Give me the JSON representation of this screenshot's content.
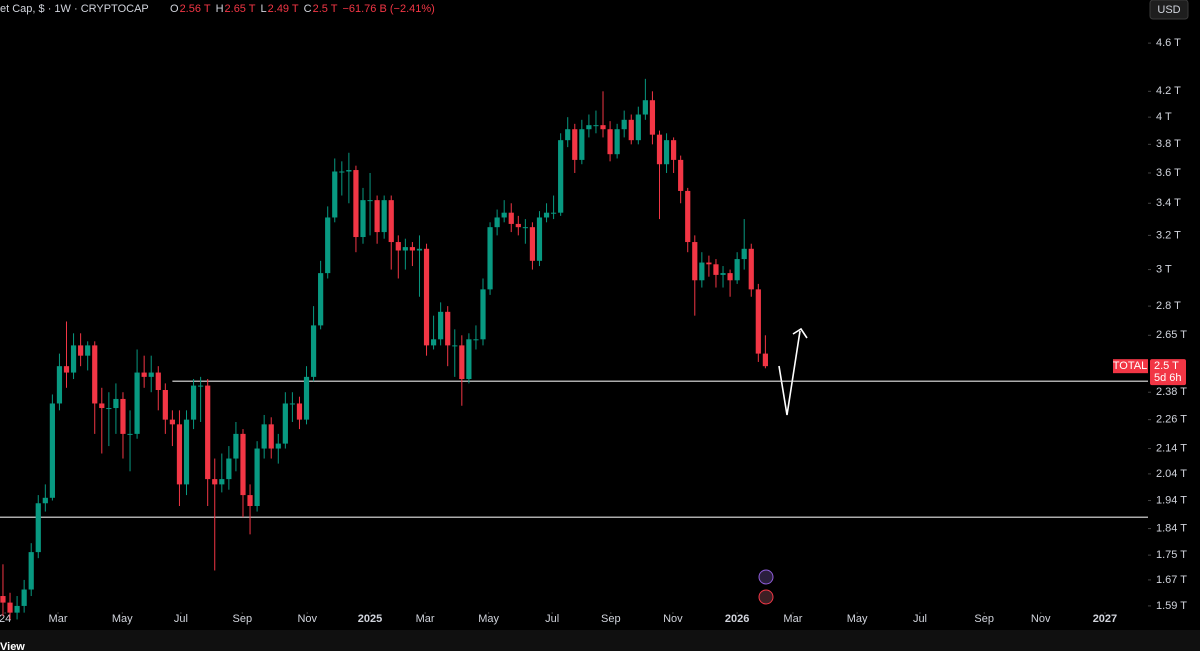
{
  "header": {
    "symbol": "et Cap, $ · 1W · CRYPTOCAP",
    "ohlc": [
      {
        "label": "O",
        "value": "2.56 T"
      },
      {
        "label": "H",
        "value": "2.65 T"
      },
      {
        "label": "L",
        "value": "2.49 T"
      },
      {
        "label": "C",
        "value": "2.5 T"
      }
    ],
    "change": "−61.76 B (−2.41%)"
  },
  "currency": "USD",
  "footer": "View",
  "chart_data": {
    "type": "candlestick",
    "log_y": true,
    "grid": false,
    "series": [
      {
        "name": "TOTAL",
        "up_color": "#089981",
        "down_color": "#f23645",
        "open": [
          1.62,
          1.6,
          1.57,
          1.59,
          1.64,
          1.76,
          1.93,
          1.95,
          2.33,
          2.5,
          2.47,
          2.6,
          2.55,
          2.6,
          2.33,
          2.31,
          2.31,
          2.35,
          2.2,
          2.2,
          2.47,
          2.45,
          2.47,
          2.39,
          2.26,
          2.24,
          2.0,
          2.26,
          2.41,
          2.41,
          2.02,
          2.0,
          2.02,
          2.1,
          2.2,
          1.96,
          1.92,
          2.14,
          2.24,
          2.14,
          2.16,
          2.33,
          2.33,
          2.26,
          2.45,
          2.7,
          2.98,
          3.31,
          3.61,
          3.61,
          3.62,
          3.19,
          3.42,
          3.42,
          3.22,
          3.42,
          3.16,
          3.11,
          3.13,
          3.11,
          3.12,
          2.6,
          2.63,
          2.77,
          2.6,
          2.6,
          2.44,
          2.63,
          2.63,
          2.89,
          3.25,
          3.31,
          3.34,
          3.27,
          3.25,
          3.25,
          3.05,
          3.31,
          3.34,
          3.34,
          3.83,
          3.91,
          3.69,
          3.91,
          3.94,
          3.94,
          3.91,
          3.73,
          3.91,
          3.98,
          3.83,
          4.02,
          4.13,
          3.87,
          3.66,
          3.83,
          3.69,
          3.48,
          3.16,
          2.94,
          3.04,
          3.03,
          2.97,
          2.98,
          2.94,
          3.06,
          3.12,
          2.89,
          2.56
        ],
        "high": [
          1.72,
          1.63,
          1.62,
          1.67,
          1.79,
          1.96,
          2.0,
          2.37,
          2.56,
          2.72,
          2.66,
          2.66,
          2.62,
          2.62,
          2.4,
          2.38,
          2.42,
          2.38,
          2.3,
          2.58,
          2.55,
          2.55,
          2.5,
          2.42,
          2.3,
          2.3,
          2.3,
          2.44,
          2.45,
          2.44,
          2.1,
          2.12,
          2.15,
          2.25,
          2.22,
          2.0,
          2.17,
          2.28,
          2.27,
          2.2,
          2.38,
          2.38,
          2.36,
          2.5,
          2.8,
          3.05,
          3.38,
          3.7,
          3.68,
          3.74,
          3.65,
          3.5,
          3.6,
          3.45,
          3.45,
          3.45,
          3.2,
          3.18,
          3.16,
          3.2,
          3.15,
          2.75,
          2.82,
          2.8,
          2.68,
          2.65,
          2.66,
          2.7,
          2.95,
          3.28,
          3.36,
          3.42,
          3.4,
          3.32,
          3.3,
          3.28,
          3.35,
          3.4,
          3.45,
          3.88,
          4.0,
          3.95,
          3.98,
          4.02,
          4.05,
          4.2,
          3.97,
          3.95,
          4.05,
          4.02,
          4.08,
          4.3,
          4.2,
          3.9,
          3.88,
          3.85,
          3.72,
          3.5,
          3.2,
          3.1,
          3.08,
          3.06,
          3.02,
          3.0,
          3.1,
          3.3,
          3.15,
          2.92,
          2.65
        ],
        "low": [
          1.56,
          1.55,
          1.55,
          1.57,
          1.62,
          1.74,
          1.9,
          1.94,
          2.3,
          2.4,
          2.44,
          2.5,
          2.48,
          2.2,
          2.12,
          2.15,
          2.2,
          2.1,
          2.05,
          2.18,
          2.4,
          2.38,
          2.3,
          2.2,
          2.15,
          1.92,
          1.96,
          2.22,
          2.25,
          1.92,
          1.7,
          1.97,
          1.98,
          2.05,
          1.88,
          1.82,
          1.9,
          2.1,
          2.1,
          2.08,
          2.14,
          2.25,
          2.22,
          2.24,
          2.43,
          2.68,
          2.95,
          3.28,
          3.45,
          3.4,
          3.1,
          3.15,
          3.2,
          3.15,
          3.18,
          3.0,
          2.95,
          3.0,
          3.02,
          2.85,
          2.55,
          2.58,
          2.6,
          2.5,
          2.45,
          2.32,
          2.42,
          2.58,
          2.6,
          2.86,
          3.2,
          3.28,
          3.22,
          3.2,
          3.15,
          3.0,
          3.02,
          3.28,
          3.3,
          3.32,
          3.78,
          3.6,
          3.66,
          3.85,
          3.88,
          3.85,
          3.68,
          3.7,
          3.85,
          3.8,
          3.8,
          3.98,
          3.8,
          3.3,
          3.6,
          3.6,
          3.4,
          3.1,
          2.75,
          2.9,
          2.96,
          2.9,
          2.9,
          2.85,
          2.92,
          3.0,
          2.85,
          2.52,
          2.49
        ],
        "close": [
          1.6,
          1.57,
          1.59,
          1.64,
          1.76,
          1.93,
          1.95,
          2.33,
          2.5,
          2.47,
          2.6,
          2.55,
          2.6,
          2.33,
          2.31,
          2.31,
          2.35,
          2.2,
          2.2,
          2.47,
          2.45,
          2.47,
          2.39,
          2.26,
          2.24,
          2.0,
          2.26,
          2.41,
          2.41,
          2.02,
          2.0,
          2.02,
          2.1,
          2.2,
          1.96,
          1.92,
          2.14,
          2.24,
          2.14,
          2.16,
          2.33,
          2.33,
          2.26,
          2.45,
          2.7,
          2.98,
          3.31,
          3.61,
          3.61,
          3.62,
          3.19,
          3.42,
          3.42,
          3.22,
          3.42,
          3.16,
          3.11,
          3.13,
          3.11,
          3.12,
          2.6,
          2.63,
          2.77,
          2.6,
          2.6,
          2.44,
          2.63,
          2.63,
          2.89,
          3.25,
          3.31,
          3.34,
          3.27,
          3.25,
          3.25,
          3.05,
          3.31,
          3.34,
          3.34,
          3.83,
          3.91,
          3.69,
          3.91,
          3.94,
          3.94,
          3.91,
          3.73,
          3.91,
          3.98,
          3.83,
          4.02,
          4.13,
          3.87,
          3.66,
          3.83,
          3.69,
          3.48,
          3.16,
          2.94,
          3.04,
          3.03,
          2.97,
          2.98,
          2.94,
          3.06,
          3.12,
          2.89,
          2.56,
          2.5
        ]
      }
    ],
    "last_label": "2.5 T",
    "countdown": "5d 6h",
    "hlines": [
      {
        "value": 2.43,
        "x_start": 24
      },
      {
        "value": 1.88
      }
    ],
    "xlim": [
      -0.42,
      162.2
    ],
    "xticks": [
      {
        "value": 0.3,
        "label": "24"
      },
      {
        "value": 7.8,
        "label": "Mar"
      },
      {
        "value": 16.9,
        "label": "May"
      },
      {
        "value": 25.2,
        "label": "Jul"
      },
      {
        "value": 33.9,
        "label": "Sep"
      },
      {
        "value": 43.1,
        "label": "Nov"
      },
      {
        "value": 52,
        "label": "2025"
      },
      {
        "value": 59.8,
        "label": "Mar"
      },
      {
        "value": 68.8,
        "label": "May"
      },
      {
        "value": 77.8,
        "label": "Jul"
      },
      {
        "value": 86.1,
        "label": "Sep"
      },
      {
        "value": 94.9,
        "label": "Nov"
      },
      {
        "value": 104,
        "label": "2026"
      },
      {
        "value": 111.9,
        "label": "Mar"
      },
      {
        "value": 121,
        "label": "May"
      },
      {
        "value": 129.9,
        "label": "Jul"
      },
      {
        "value": 139,
        "label": "Sep"
      },
      {
        "value": 147,
        "label": "Nov"
      },
      {
        "value": 156.1,
        "label": "2027"
      }
    ],
    "ylim": [
      1.563,
      4.99
    ],
    "yticks": [
      {
        "value": 4.6,
        "label": "4.6 T"
      },
      {
        "value": 4.2,
        "label": "4.2 T"
      },
      {
        "value": 4,
        "label": "4 T"
      },
      {
        "value": 3.8,
        "label": "3.8 T"
      },
      {
        "value": 3.6,
        "label": "3.6 T"
      },
      {
        "value": 3.4,
        "label": "3.4 T"
      },
      {
        "value": 3.2,
        "label": "3.2 T"
      },
      {
        "value": 3,
        "label": "3 T"
      },
      {
        "value": 2.8,
        "label": "2.8 T"
      },
      {
        "value": 2.65,
        "label": "2.65 T"
      },
      {
        "value": 2.38,
        "label": "2.38 T"
      },
      {
        "value": 2.26,
        "label": "2.26 T"
      },
      {
        "value": 2.14,
        "label": "2.14 T"
      },
      {
        "value": 2.04,
        "label": "2.04 T"
      },
      {
        "value": 1.94,
        "label": "1.94 T"
      },
      {
        "value": 1.84,
        "label": "1.84 T"
      },
      {
        "value": 1.75,
        "label": "1.75 T"
      },
      {
        "value": 1.67,
        "label": "1.67 T"
      },
      {
        "value": 1.59,
        "label": "1.59 T"
      }
    ]
  }
}
